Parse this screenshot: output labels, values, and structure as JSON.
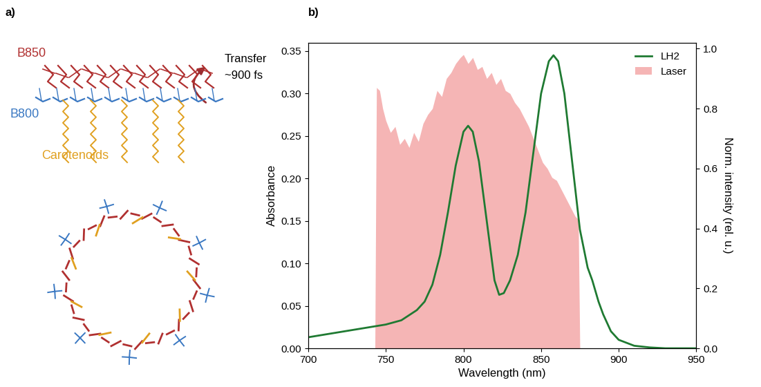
{
  "diagram": {
    "panel_label": "a)",
    "labels": [
      {
        "text": "B850",
        "color": "#b03030"
      },
      {
        "text": "B800",
        "color": "#3a78c2"
      },
      {
        "text": "Carotenoids",
        "color": "#e0a020"
      }
    ],
    "arrow_texts": [
      "Transfer",
      "~900 fs"
    ]
  },
  "chart_data": {
    "panel_label": "b)",
    "type": "line",
    "x_label": "Wavelength (nm)",
    "y_label": "Absorbance",
    "y2_label": "Norm. intensity (rel. u.)",
    "xlim": [
      700,
      950
    ],
    "xticks": [
      700,
      750,
      800,
      850,
      900,
      950
    ],
    "ylim": [
      0,
      0.36
    ],
    "yticks": [
      {
        "value": 0.0,
        "label": "0.00"
      },
      {
        "value": 0.05,
        "label": "0.05"
      },
      {
        "value": 0.1,
        "label": "0.10"
      },
      {
        "value": 0.15,
        "label": "0.15"
      },
      {
        "value": 0.2,
        "label": "0.20"
      },
      {
        "value": 0.25,
        "label": "0.25"
      },
      {
        "value": 0.3,
        "label": "0.30"
      },
      {
        "value": 0.35,
        "label": "0.35"
      }
    ],
    "y2lim": [
      0,
      1.02
    ],
    "y2ticks": [
      0.0,
      0.2,
      0.4,
      0.6,
      0.8,
      1.0
    ],
    "legend": "upper right",
    "series": [
      {
        "name": "Laser",
        "type": "area",
        "color": "#f5b5b5",
        "axis": "y2",
        "x": [
          743,
          744,
          746,
          748,
          750,
          753,
          756,
          759,
          762,
          765,
          768,
          771,
          774,
          777,
          780,
          783,
          786,
          789,
          792,
          795,
          798,
          800,
          803,
          806,
          809,
          812,
          815,
          818,
          821,
          824,
          827,
          830,
          833,
          836,
          839,
          842,
          845,
          848,
          851,
          854,
          857,
          860,
          863,
          866,
          869,
          872,
          874,
          875
        ],
        "values": [
          0.0,
          0.87,
          0.86,
          0.8,
          0.76,
          0.72,
          0.74,
          0.68,
          0.7,
          0.67,
          0.72,
          0.69,
          0.75,
          0.78,
          0.8,
          0.86,
          0.84,
          0.9,
          0.92,
          0.95,
          0.97,
          0.98,
          0.95,
          0.97,
          0.93,
          0.94,
          0.9,
          0.92,
          0.88,
          0.9,
          0.86,
          0.85,
          0.82,
          0.8,
          0.77,
          0.74,
          0.7,
          0.66,
          0.62,
          0.6,
          0.57,
          0.56,
          0.53,
          0.5,
          0.47,
          0.44,
          0.43,
          0.0
        ]
      },
      {
        "name": "LH2",
        "type": "line",
        "color": "#1f7a32",
        "x": [
          700,
          710,
          720,
          730,
          740,
          750,
          760,
          770,
          775,
          780,
          785,
          790,
          795,
          800,
          803,
          806,
          810,
          815,
          820,
          823,
          826,
          830,
          835,
          840,
          845,
          850,
          855,
          858,
          861,
          865,
          870,
          875,
          880,
          883,
          887,
          890,
          895,
          900,
          910,
          920,
          930,
          950
        ],
        "values": [
          0.013,
          0.016,
          0.019,
          0.022,
          0.025,
          0.028,
          0.033,
          0.045,
          0.055,
          0.075,
          0.11,
          0.16,
          0.215,
          0.255,
          0.262,
          0.255,
          0.22,
          0.15,
          0.08,
          0.063,
          0.065,
          0.08,
          0.11,
          0.16,
          0.23,
          0.3,
          0.338,
          0.345,
          0.338,
          0.3,
          0.22,
          0.14,
          0.095,
          0.08,
          0.055,
          0.04,
          0.02,
          0.01,
          0.003,
          0.001,
          0.0,
          0.0
        ]
      }
    ]
  }
}
